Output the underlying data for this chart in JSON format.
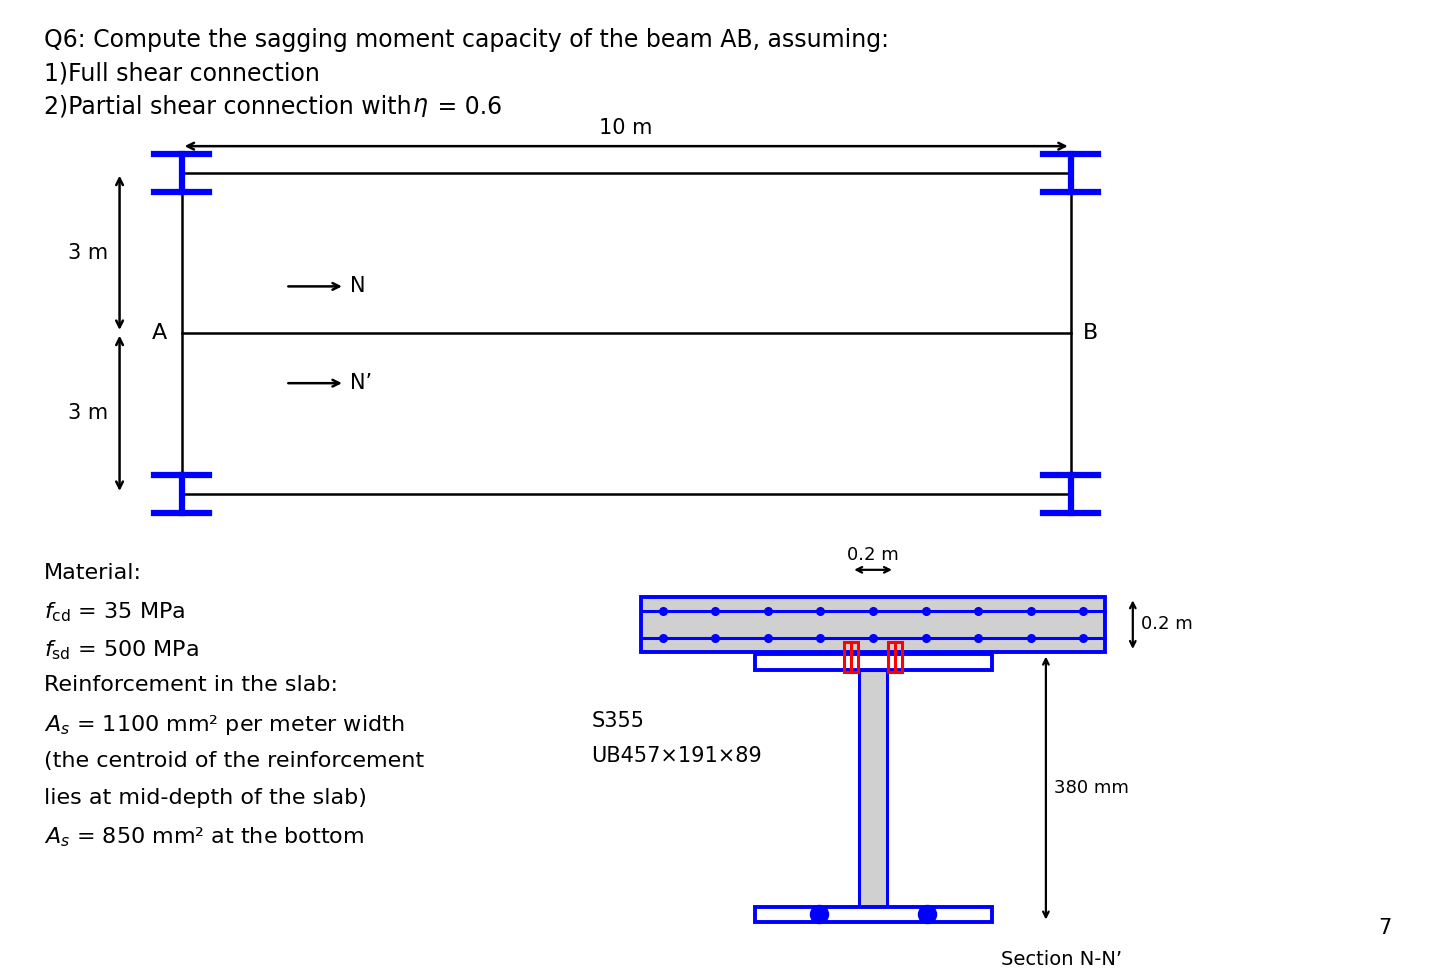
{
  "title_line1": "Q6: Compute the sagging moment capacity of the beam AB, assuming:",
  "title_line2": "1)Full shear connection",
  "title_line3": "2)Partial shear connection with ",
  "title_eta": " = 0.6",
  "beam_span": "10 m",
  "dim_3m_top": "3 m",
  "dim_3m_bot": "3 m",
  "label_A": "A",
  "label_B": "B",
  "label_N": "N",
  "label_Nprime": "N’",
  "material_title": "Material:",
  "fcd_val": " = 35 MPa",
  "fsd_val": " = 500 MPa",
  "reinf_text": "Reinforcement in the slab:",
  "As1_val": " = 1100 mm² per meter width",
  "centroid_text1": "(the centroid of the reinforcement",
  "centroid_text2": "lies at mid-depth of the slab)",
  "As2_val": " = 850 mm² at the bottom",
  "section_label": "S355",
  "section_size": "UB457×191×89",
  "dim_02m": "0.2 m",
  "dim_02m_vert": "0.2 m",
  "dim_380": "380 mm",
  "section_nn": "Section N-N’",
  "page_num": "7",
  "blue": "#0000FF",
  "black": "#000000",
  "red": "#FF0000",
  "gray_fill": "#D0D0D0",
  "bg": "#FFFFFF"
}
